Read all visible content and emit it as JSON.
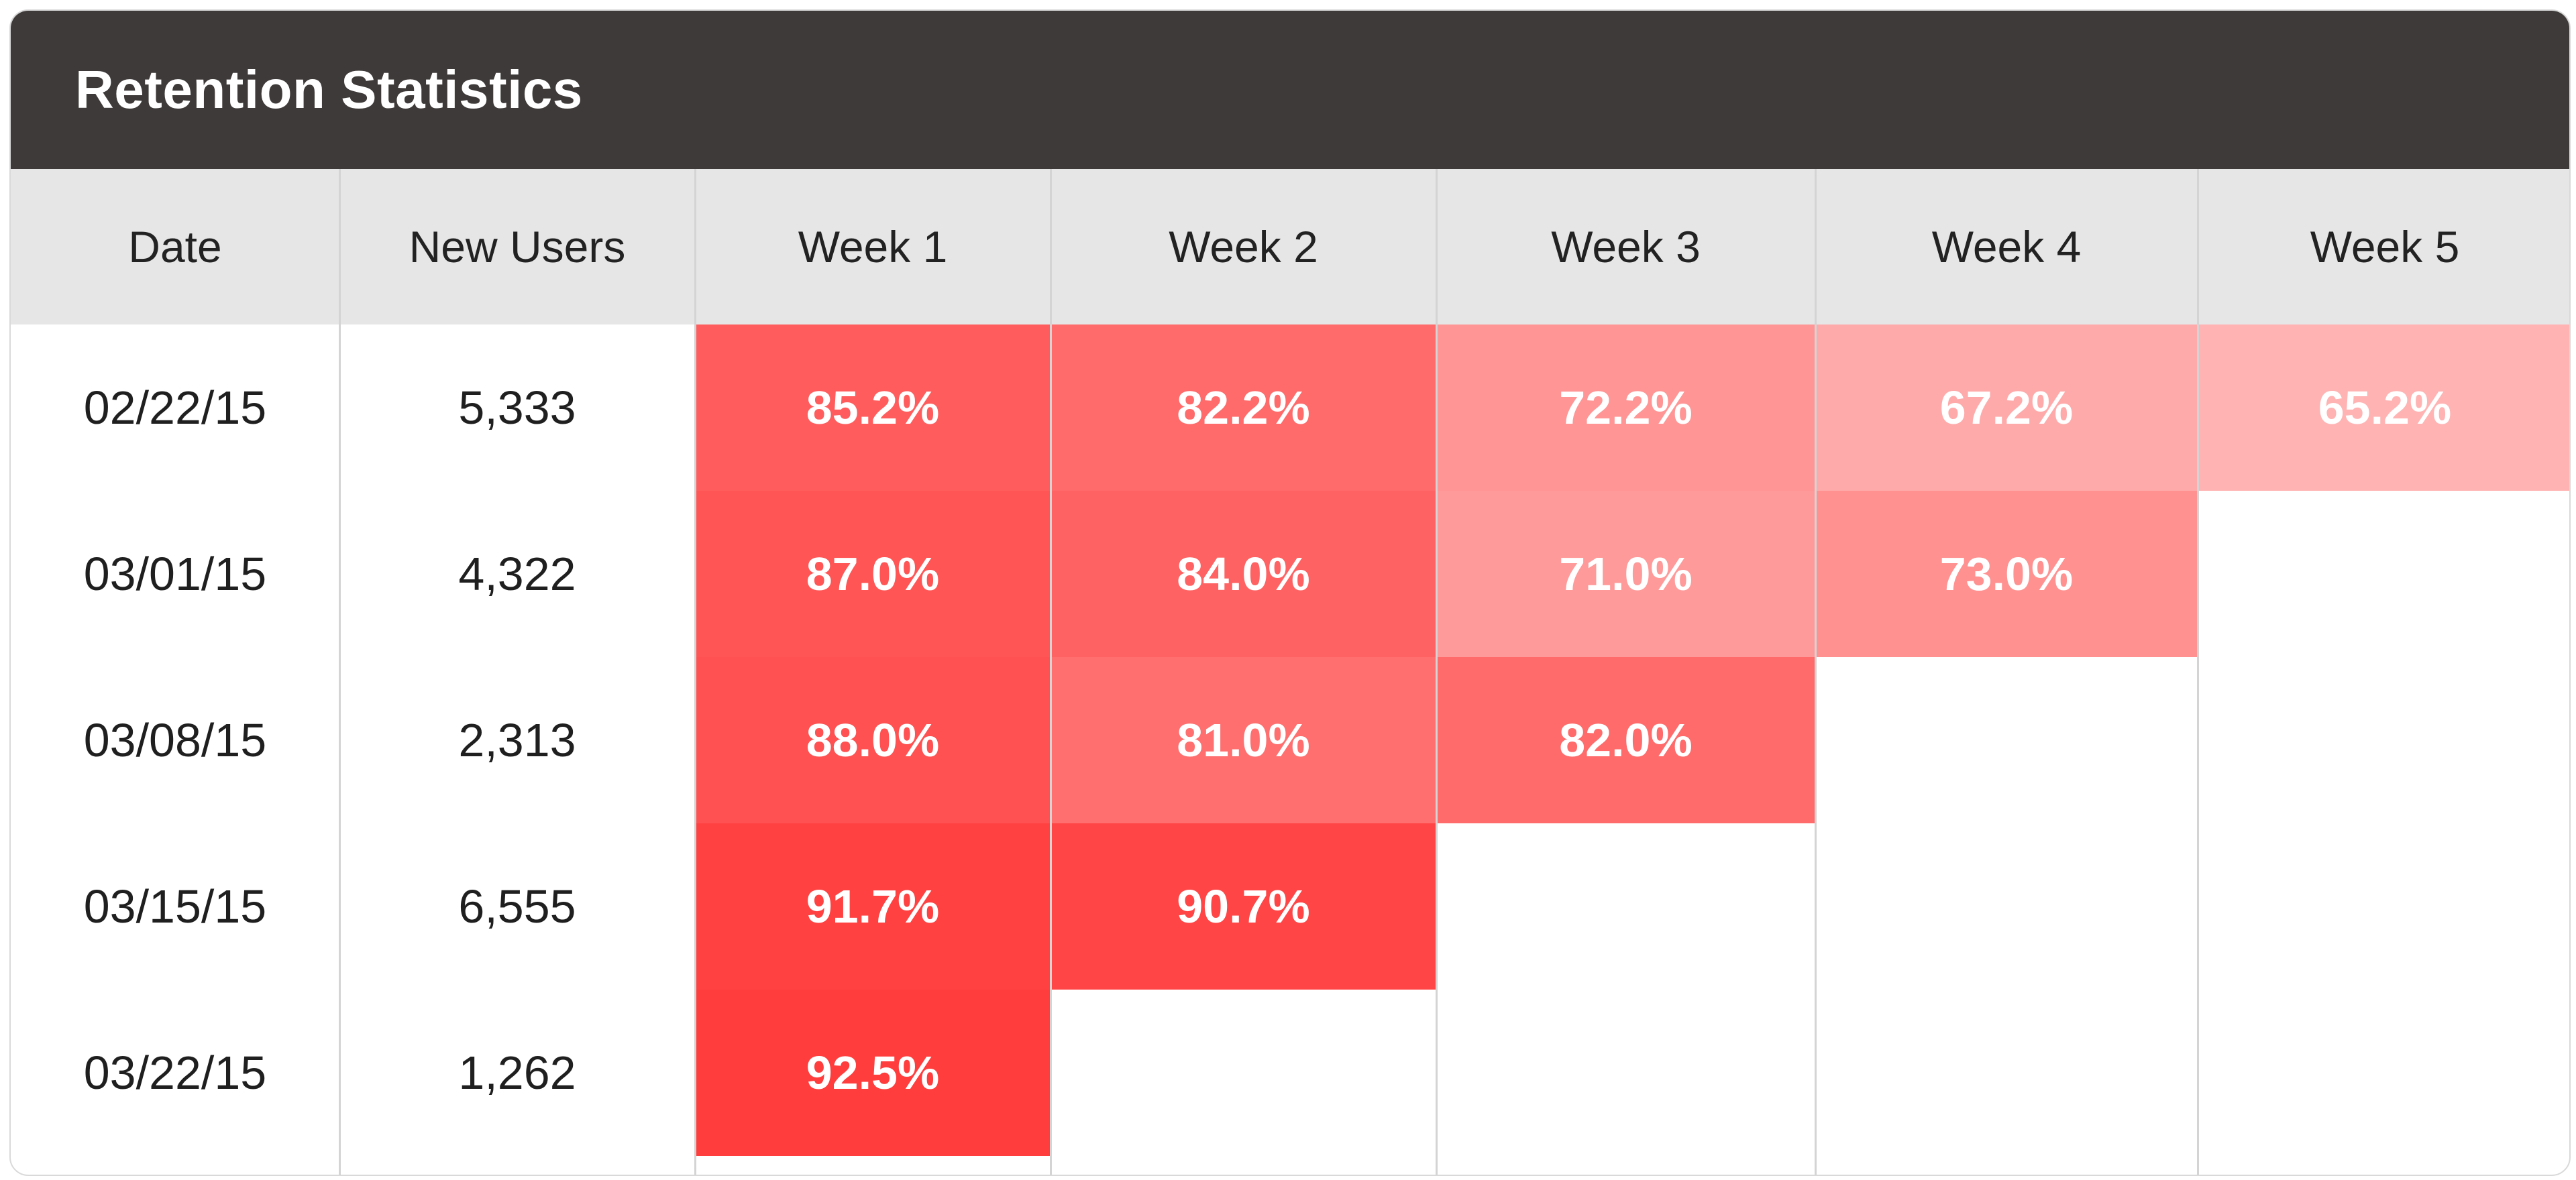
{
  "title": "Retention Statistics",
  "columns": [
    "Date",
    "New Users",
    "Week 1",
    "Week 2",
    "Week 3",
    "Week 4",
    "Week 5"
  ],
  "colors": {
    "title_bar": "#3e3a39",
    "header_bg": "#e6e6e6",
    "divider": "#d4d4d4",
    "heat_low": "#ffb4b4",
    "heat_high": "#ff3b3b"
  },
  "rows": [
    {
      "date": "02/22/15",
      "new_users": "5,333",
      "weeks": [
        "85.2%",
        "82.2%",
        "72.2%",
        "67.2%",
        "65.2%"
      ]
    },
    {
      "date": "03/01/15",
      "new_users": "4,322",
      "weeks": [
        "87.0%",
        "84.0%",
        "71.0%",
        "73.0%"
      ]
    },
    {
      "date": "03/08/15",
      "new_users": "2,313",
      "weeks": [
        "88.0%",
        "81.0%",
        "82.0%"
      ]
    },
    {
      "date": "03/15/15",
      "new_users": "6,555",
      "weeks": [
        "91.7%",
        "90.7%"
      ]
    },
    {
      "date": "03/22/15",
      "new_users": "1,262",
      "weeks": [
        "92.5%"
      ]
    }
  ],
  "chart_data": {
    "type": "heatmap",
    "title": "Retention Statistics",
    "x": [
      "Week 1",
      "Week 2",
      "Week 3",
      "Week 4",
      "Week 5"
    ],
    "y": [
      "02/22/15",
      "03/01/15",
      "03/08/15",
      "03/15/15",
      "03/22/15"
    ],
    "new_users": [
      5333,
      4322,
      2313,
      6555,
      1262
    ],
    "values": [
      [
        85.2,
        82.2,
        72.2,
        67.2,
        65.2
      ],
      [
        87.0,
        84.0,
        71.0,
        73.0,
        null
      ],
      [
        88.0,
        81.0,
        82.0,
        null,
        null
      ],
      [
        91.7,
        90.7,
        null,
        null,
        null
      ],
      [
        92.5,
        null,
        null,
        null,
        null
      ]
    ],
    "unit": "%"
  }
}
